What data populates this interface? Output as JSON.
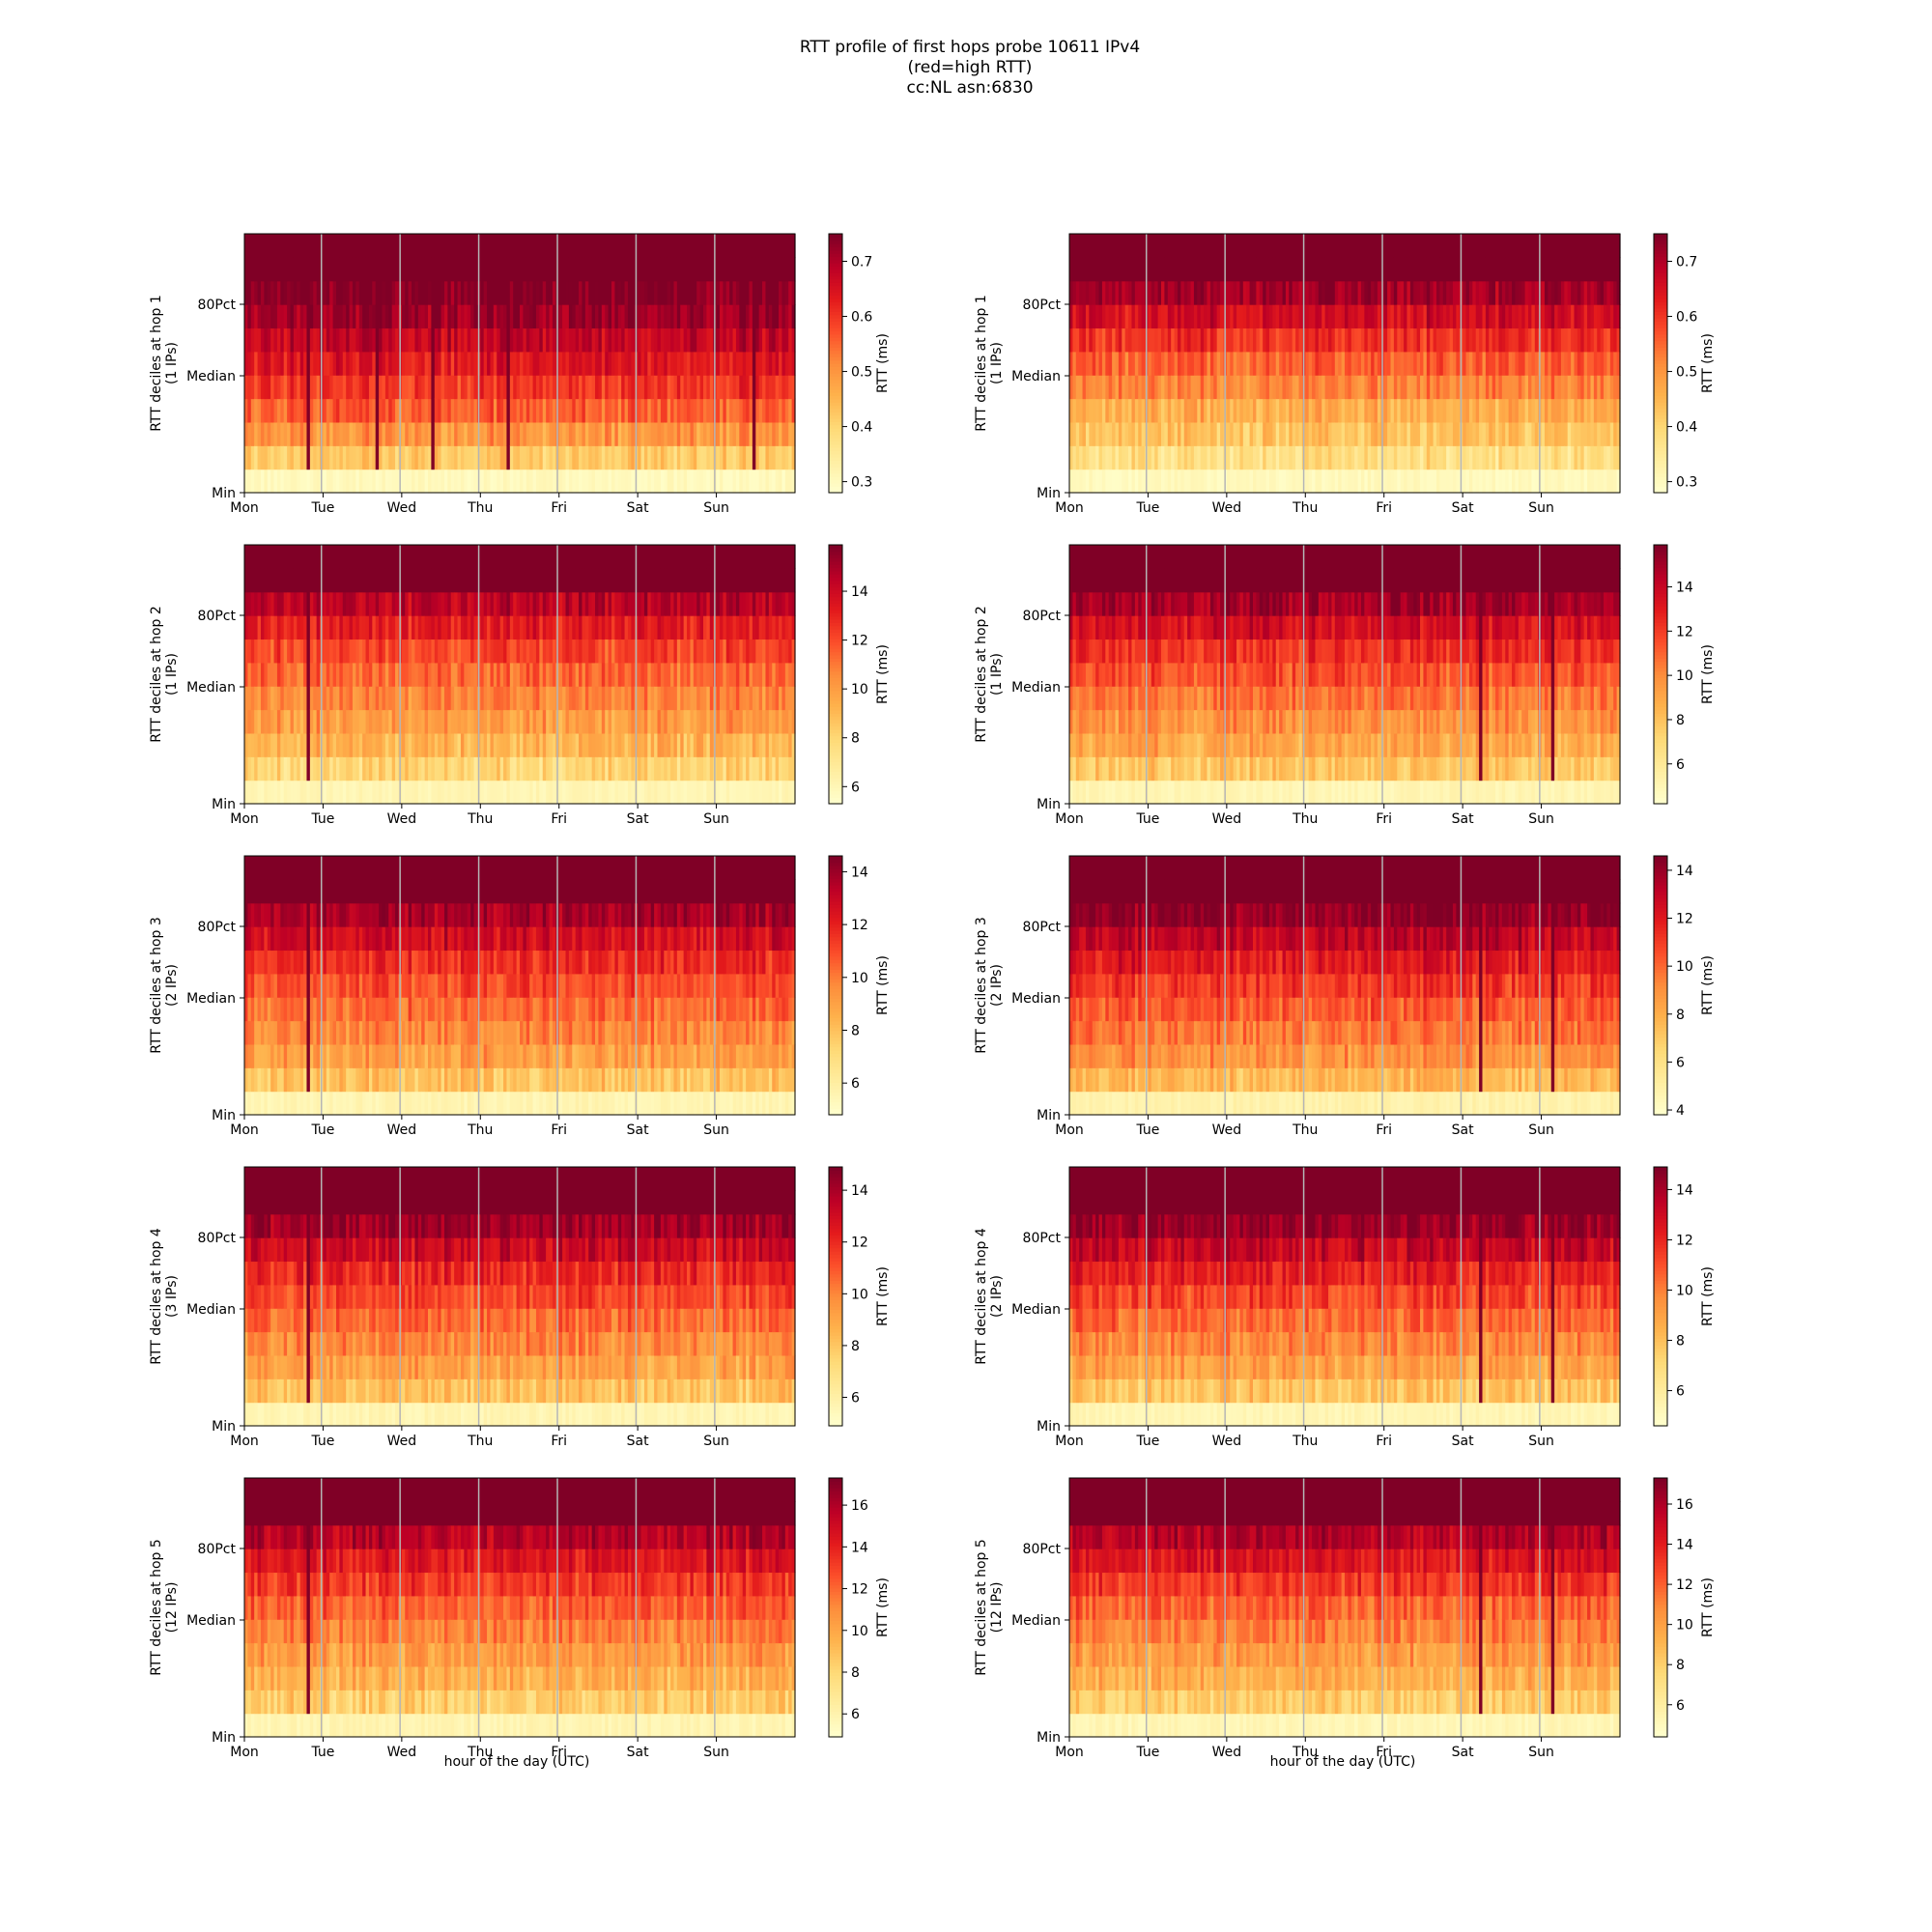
{
  "title_lines": [
    "RTT profile of first hops probe 10611 IPv4",
    "(red=high RTT)",
    "cc:NL asn:6830"
  ],
  "x_tick_labels": [
    "Mon",
    "Tue",
    "Wed",
    "Thu",
    "Fri",
    "Sat",
    "Sun"
  ],
  "y_tick_labels": [
    "80Pct",
    "Median",
    "Min"
  ],
  "x_axis_label": "hour of the day (UTC)",
  "colorbar_label": "RTT (ms)",
  "colormap": [
    "#ffffcc",
    "#ffeda0",
    "#fed976",
    "#feb24c",
    "#fd8d3c",
    "#fc4e2a",
    "#e31a1c",
    "#bd0026",
    "#800026"
  ],
  "chart_data": [
    {
      "type": "heatmap",
      "title": "",
      "ylabel": "RTT deciles at hop 1",
      "ylabel2": "(1 IPs)",
      "hop": 1,
      "ips": 1,
      "colorbar_ticks": [
        "0.3",
        "0.4",
        "0.5",
        "0.6",
        "0.7"
      ],
      "clim": [
        0.28,
        0.75
      ],
      "row_means": [
        0.3,
        0.42,
        0.5,
        0.56,
        0.6,
        0.64,
        0.68,
        0.72,
        0.75,
        0.76,
        0.78
      ],
      "spikes": [
        19,
        40,
        57,
        80,
        155
      ]
    },
    {
      "type": "heatmap",
      "title": "",
      "ylabel": "RTT deciles at hop 1",
      "ylabel2": "(1 IPs)",
      "hop": 1,
      "ips": 1,
      "colorbar_ticks": [
        "0.3",
        "0.4",
        "0.5",
        "0.6",
        "0.7"
      ],
      "clim": [
        0.28,
        0.75
      ],
      "row_means": [
        0.3,
        0.38,
        0.43,
        0.47,
        0.52,
        0.56,
        0.61,
        0.66,
        0.72,
        0.76,
        0.78
      ],
      "spikes": []
    },
    {
      "type": "heatmap",
      "title": "",
      "ylabel": "RTT deciles at hop 2",
      "ylabel2": "(1 IPs)",
      "hop": 2,
      "ips": 1,
      "colorbar_ticks": [
        "6",
        "8",
        "10",
        "12",
        "14"
      ],
      "clim": [
        5.3,
        15.9
      ],
      "row_means": [
        6.0,
        8.0,
        9.2,
        10.0,
        10.7,
        11.4,
        12.2,
        13.2,
        14.5,
        16.0,
        16.5
      ],
      "spikes": [
        19
      ]
    },
    {
      "type": "heatmap",
      "title": "",
      "ylabel": "RTT deciles at hop 2",
      "ylabel2": "(1 IPs)",
      "hop": 2,
      "ips": 1,
      "colorbar_ticks": [
        "6",
        "8",
        "10",
        "12",
        "14"
      ],
      "clim": [
        4.2,
        15.9
      ],
      "row_means": [
        5.0,
        7.8,
        9.0,
        9.8,
        10.6,
        11.5,
        12.4,
        13.6,
        15.0,
        16.2,
        16.5
      ],
      "spikes": [
        125,
        147
      ]
    },
    {
      "type": "heatmap",
      "title": "",
      "ylabel": "RTT deciles at hop 3",
      "ylabel2": "(2 IPs)",
      "hop": 3,
      "ips": 2,
      "colorbar_ticks": [
        "6",
        "8",
        "10",
        "12",
        "14"
      ],
      "clim": [
        4.8,
        14.6
      ],
      "row_means": [
        5.5,
        8.0,
        9.1,
        9.8,
        10.4,
        11.0,
        11.8,
        12.8,
        13.8,
        14.8,
        15.0
      ],
      "spikes": [
        19
      ]
    },
    {
      "type": "heatmap",
      "title": "",
      "ylabel": "RTT deciles at hop 3",
      "ylabel2": "(2 IPs)",
      "hop": 3,
      "ips": 2,
      "colorbar_ticks": [
        "4",
        "6",
        "8",
        "10",
        "12",
        "14"
      ],
      "clim": [
        3.8,
        14.6
      ],
      "row_means": [
        4.8,
        7.6,
        8.9,
        9.6,
        10.3,
        11.1,
        12.0,
        13.0,
        14.2,
        15.0,
        15.2
      ],
      "spikes": [
        125,
        147
      ]
    },
    {
      "type": "heatmap",
      "title": "",
      "ylabel": "RTT deciles at hop 4",
      "ylabel2": "(3 IPs)",
      "hop": 4,
      "ips": 3,
      "colorbar_ticks": [
        "6",
        "8",
        "10",
        "12",
        "14"
      ],
      "clim": [
        4.9,
        14.9
      ],
      "row_means": [
        5.6,
        8.1,
        9.2,
        9.9,
        10.6,
        11.3,
        12.1,
        13.1,
        14.2,
        15.0,
        15.2
      ],
      "spikes": [
        19
      ]
    },
    {
      "type": "heatmap",
      "title": "",
      "ylabel": "RTT deciles at hop 4",
      "ylabel2": "(2 IPs)",
      "hop": 4,
      "ips": 2,
      "colorbar_ticks": [
        "6",
        "8",
        "10",
        "12",
        "14"
      ],
      "clim": [
        4.6,
        14.9
      ],
      "row_means": [
        5.3,
        7.8,
        9.0,
        9.8,
        10.5,
        11.3,
        12.2,
        13.3,
        14.4,
        15.0,
        15.2
      ],
      "spikes": [
        125,
        147
      ]
    },
    {
      "type": "heatmap",
      "title": "",
      "ylabel": "RTT deciles at hop 5",
      "ylabel2": "(12 IPs)",
      "hop": 5,
      "ips": 12,
      "colorbar_ticks": [
        "6",
        "8",
        "10",
        "12",
        "14",
        "16"
      ],
      "clim": [
        4.9,
        17.3
      ],
      "row_means": [
        5.8,
        8.4,
        9.6,
        10.5,
        11.3,
        12.2,
        13.2,
        14.4,
        15.8,
        17.4,
        17.6
      ],
      "spikes": [
        19
      ]
    },
    {
      "type": "heatmap",
      "title": "",
      "ylabel": "RTT deciles at hop 5",
      "ylabel2": "(12 IPs)",
      "hop": 5,
      "ips": 12,
      "colorbar_ticks": [
        "6",
        "8",
        "10",
        "12",
        "14",
        "16"
      ],
      "clim": [
        4.4,
        17.3
      ],
      "row_means": [
        5.2,
        8.0,
        9.3,
        10.2,
        11.1,
        12.0,
        13.1,
        14.4,
        15.8,
        17.4,
        17.6
      ],
      "spikes": [
        125,
        147
      ]
    }
  ]
}
